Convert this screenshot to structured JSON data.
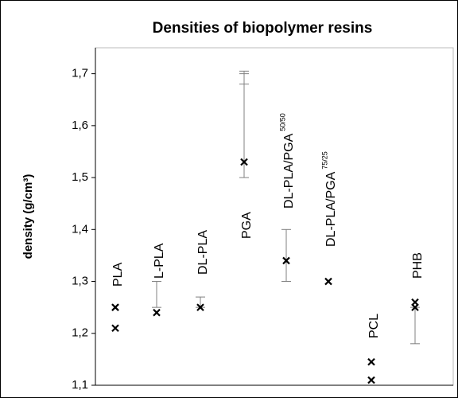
{
  "chart_data": {
    "type": "scatter",
    "title": "Densities of biopolymer resins",
    "y_label": "density (g/cm³)",
    "categories": [
      "PLA",
      "L-PLA",
      "DL-PLA",
      "PGA",
      "DL-PLA/PGA",
      "DL-PLA/PGA",
      "PCL",
      "PHB"
    ],
    "category_superscripts": [
      null,
      null,
      null,
      null,
      "50/50",
      "75/25",
      null,
      null
    ],
    "values": [
      [
        1.25,
        1.25,
        1.21
      ],
      [
        1.24
      ],
      [
        1.25
      ],
      [
        1.53
      ],
      [
        1.34
      ],
      [
        1.3
      ],
      [
        1.145,
        1.11
      ],
      [
        1.26,
        1.25
      ]
    ],
    "ranges": [
      [],
      [
        1.25,
        1.3
      ],
      [
        1.25,
        1.27
      ],
      [
        1.5,
        1.68,
        1.7,
        1.705
      ],
      [
        1.3,
        1.4
      ],
      [],
      [],
      [
        1.18,
        1.25
      ]
    ],
    "marker_color": "#000000",
    "range_color": "#808080",
    "ylim": [
      1.1,
      1.75
    ],
    "yticks": [
      {
        "value": 1.1,
        "label": "1,1"
      },
      {
        "value": 1.2,
        "label": "1,2"
      },
      {
        "value": 1.3,
        "label": "1,3"
      },
      {
        "value": 1.4,
        "label": "1,4"
      },
      {
        "value": 1.5,
        "label": "1,5"
      },
      {
        "value": 1.6,
        "label": "1,6"
      },
      {
        "value": 1.7,
        "label": "1,7"
      }
    ]
  }
}
